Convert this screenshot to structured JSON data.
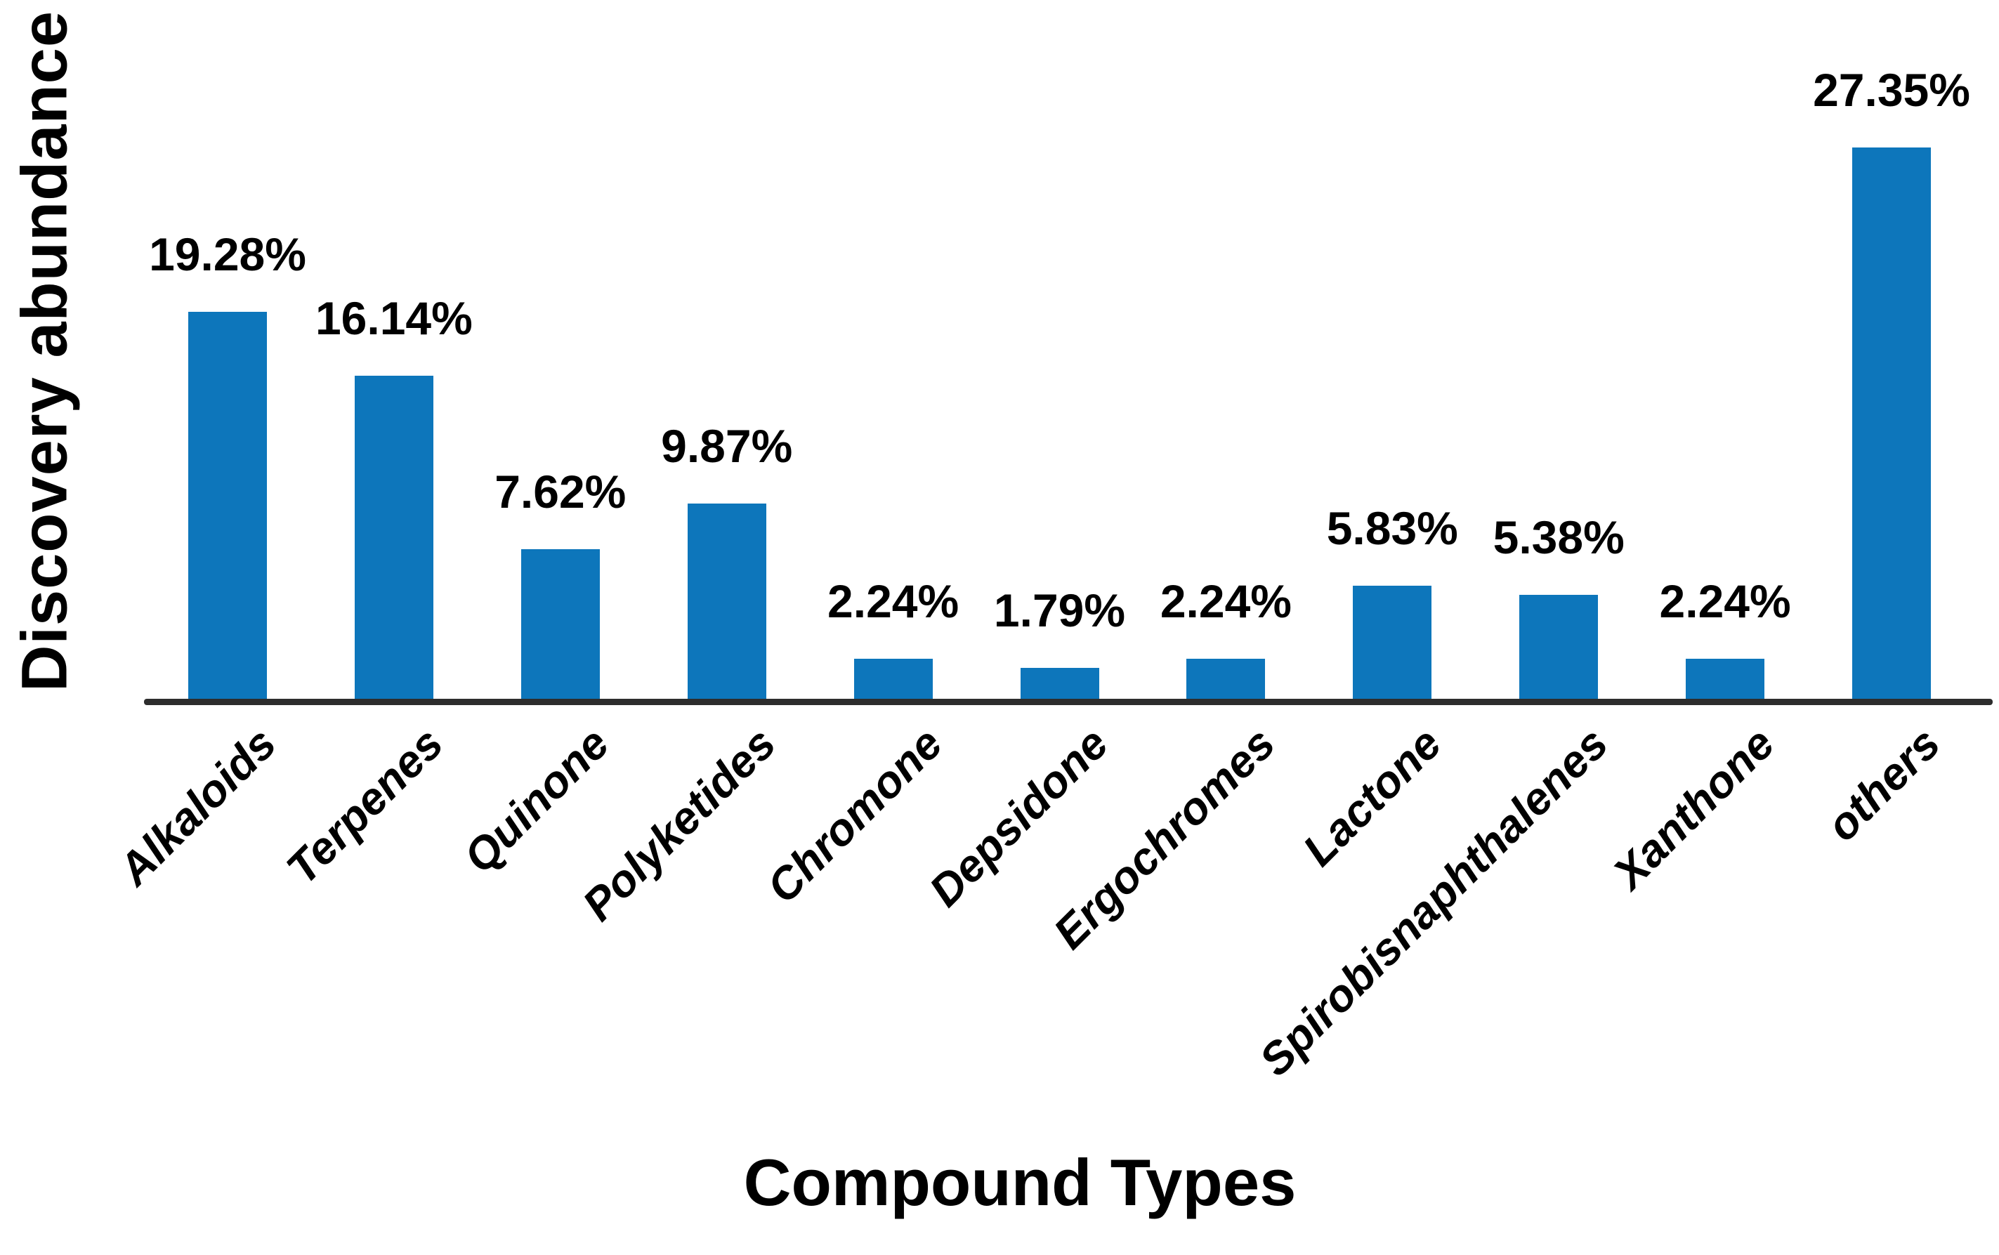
{
  "chart_data": {
    "type": "bar",
    "title": "",
    "xlabel": "Compound Types",
    "ylabel": "Discovery abundance",
    "categories": [
      "Alkaloids",
      "Terpenes",
      "Quinone",
      "Polyketides",
      "Chromone",
      "Depsidone",
      "Ergochromes",
      "Lactone",
      "Spirobisnaphthalenes",
      "Xanthone",
      "others"
    ],
    "values": [
      19.28,
      16.14,
      7.62,
      9.87,
      2.24,
      1.79,
      2.24,
      5.83,
      5.38,
      2.24,
      27.35
    ],
    "value_labels": [
      "19.28%",
      "16.14%",
      "7.62%",
      "9.87%",
      "2.24%",
      "1.79%",
      "2.24%",
      "5.83%",
      "5.38%",
      "2.24%",
      "27.35%"
    ],
    "ylim": [
      0,
      29
    ],
    "grid": false,
    "legend": false,
    "bar_color": "#0d76bb",
    "axis_color": "#2d2d2d",
    "label_color": "#000000"
  }
}
